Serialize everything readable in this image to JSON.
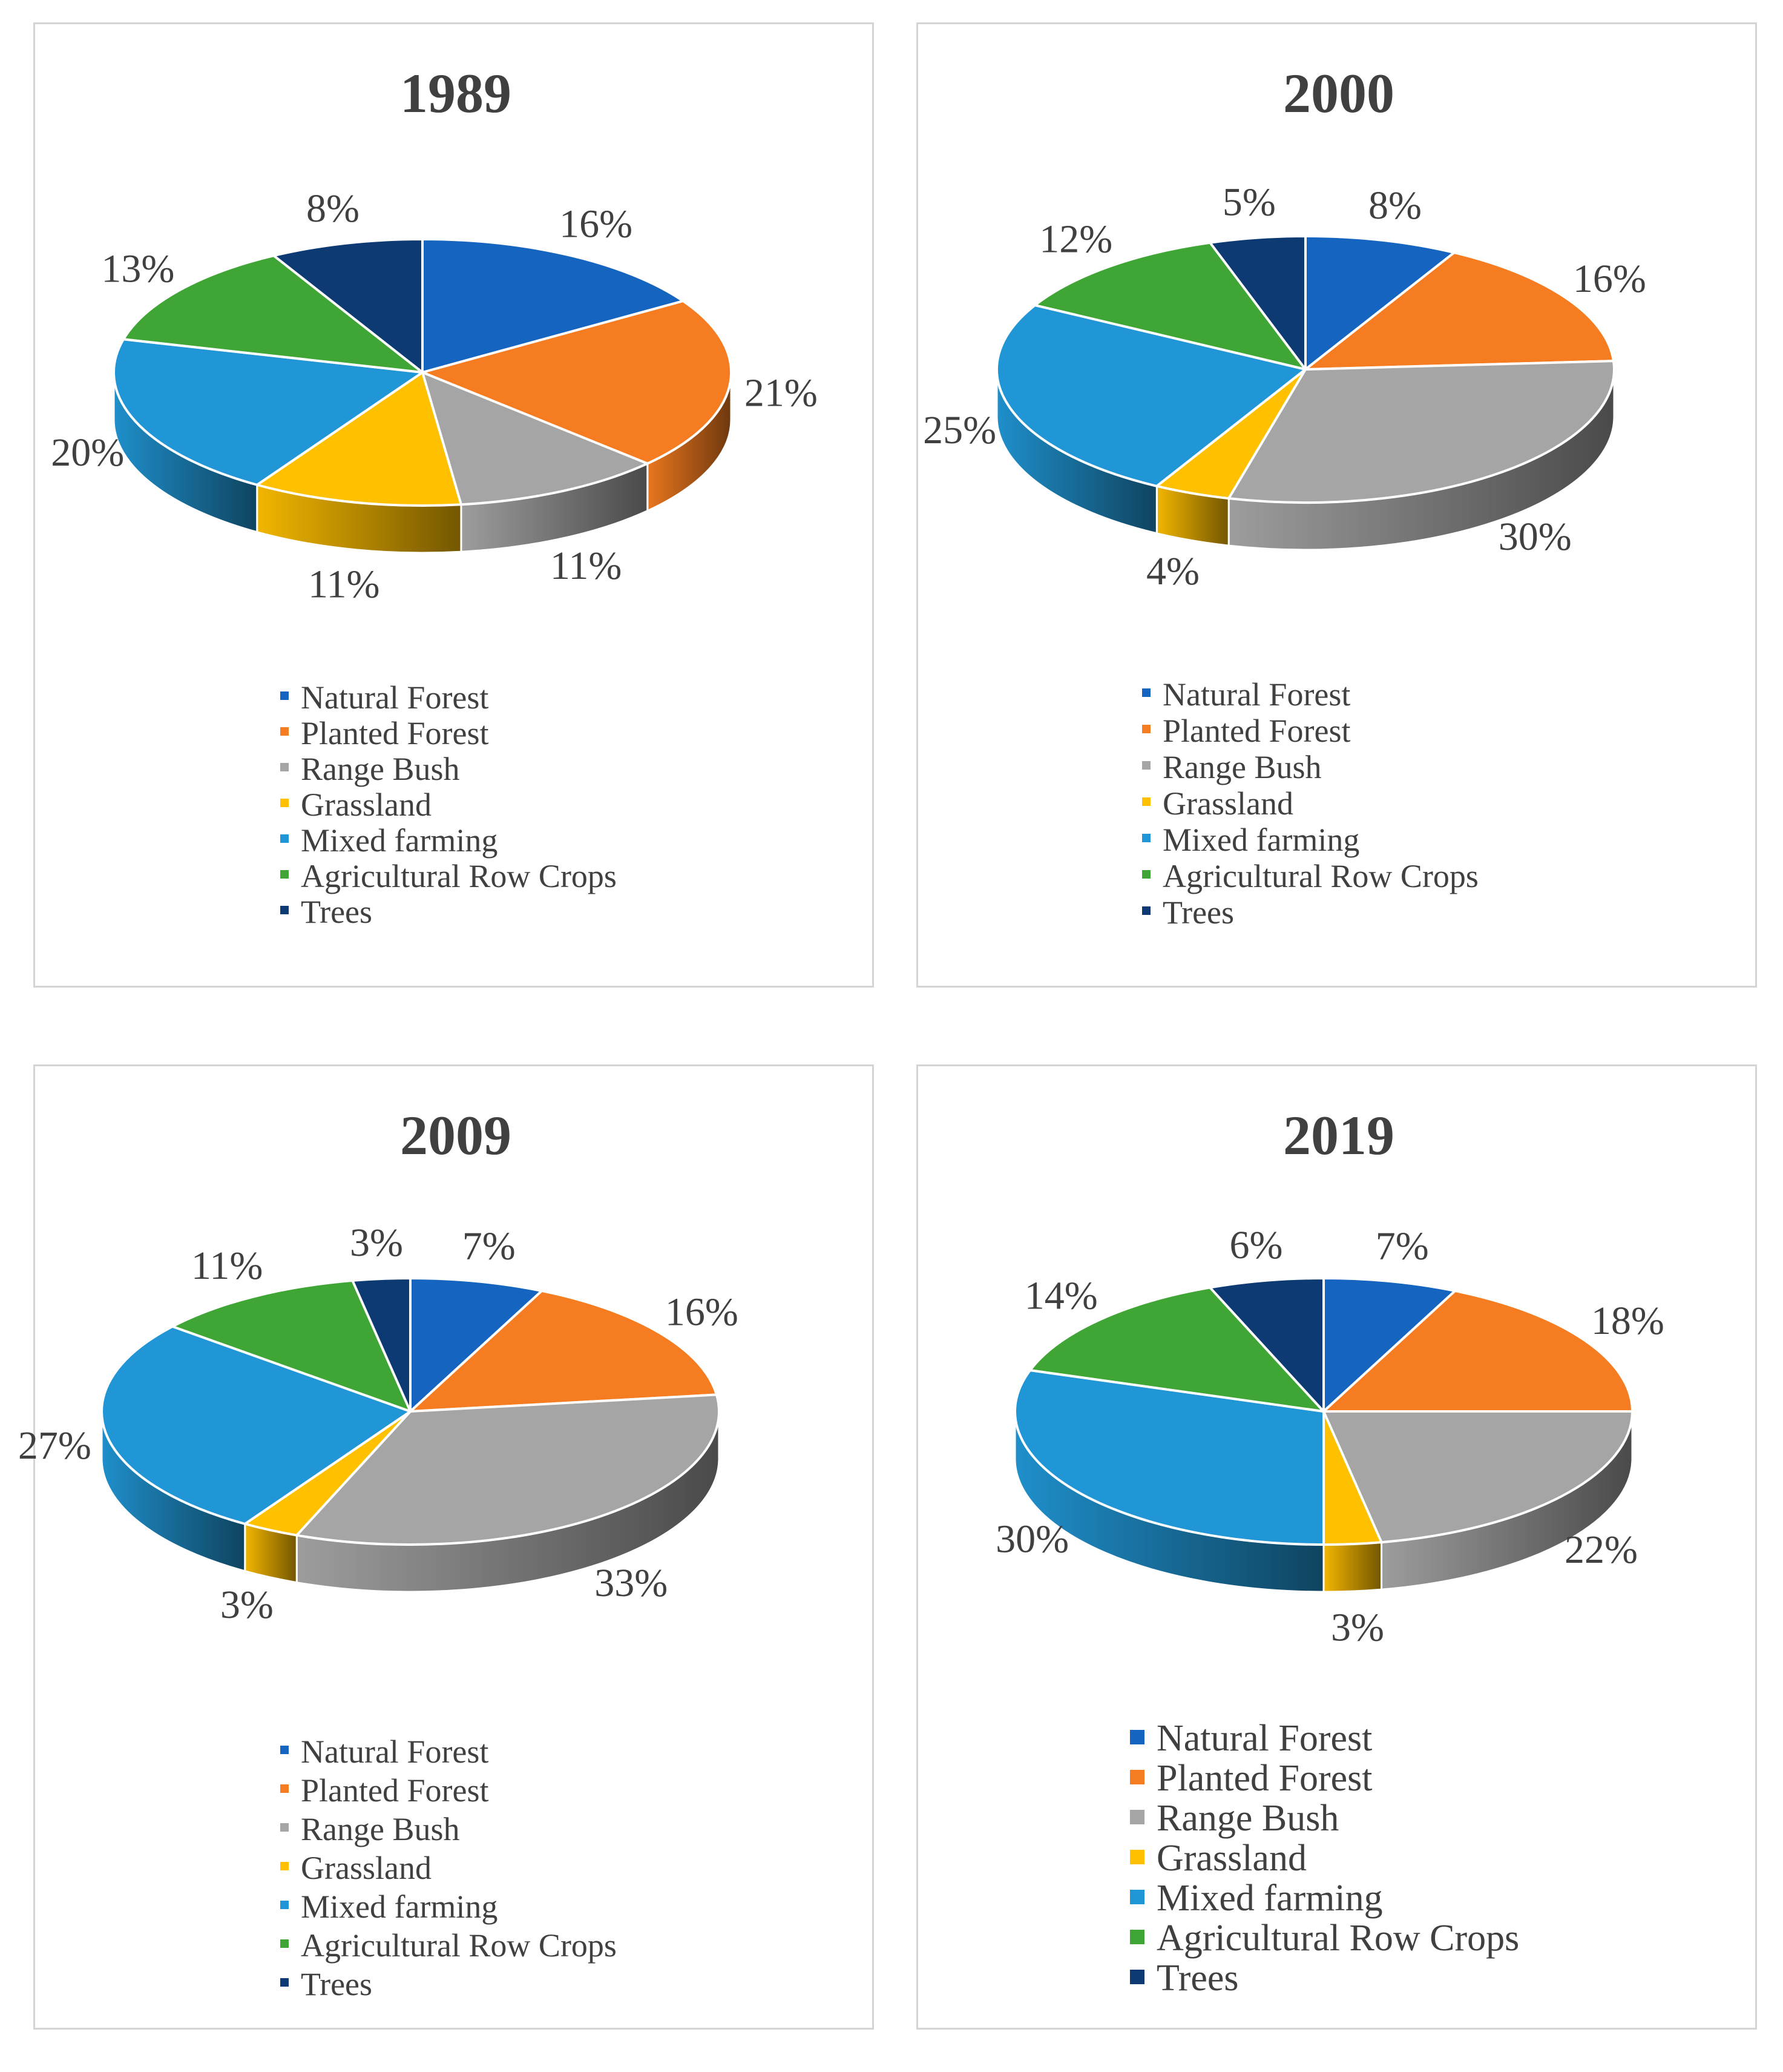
{
  "chart_data": [
    {
      "type": "pie",
      "title": "1989",
      "categories": [
        "Natural Forest",
        "Planted Forest",
        "Range Bush",
        "Grassland",
        "Mixed farming",
        "Agricultural Row Crops",
        "Trees"
      ],
      "values": [
        16,
        21,
        11,
        11,
        20,
        13,
        8
      ],
      "labels": [
        "16%",
        "21%",
        "11%",
        "11%",
        "20%",
        "13%",
        "8%"
      ],
      "legend_position": "bottom"
    },
    {
      "type": "pie",
      "title": "2000",
      "categories": [
        "Natural Forest",
        "Planted Forest",
        "Range Bush",
        "Grassland",
        "Mixed farming",
        "Agricultural Row Crops",
        "Trees"
      ],
      "values": [
        8,
        16,
        30,
        4,
        25,
        12,
        5
      ],
      "labels": [
        "8%",
        "16%",
        "30%",
        "4%",
        "25%",
        "12%",
        "5%"
      ],
      "legend_position": "bottom"
    },
    {
      "type": "pie",
      "title": "2009",
      "categories": [
        "Natural Forest",
        "Planted Forest",
        "Range Bush",
        "Grassland",
        "Mixed farming",
        "Agricultural Row Crops",
        "Trees"
      ],
      "values": [
        7,
        16,
        33,
        3,
        27,
        11,
        3
      ],
      "labels": [
        "7%",
        "16%",
        "33%",
        "3%",
        "27%",
        "11%",
        "3%"
      ],
      "legend_position": "bottom"
    },
    {
      "type": "pie",
      "title": "2019",
      "categories": [
        "Natural Forest",
        "Planted Forest",
        "Range Bush",
        "Grassland",
        "Mixed farming",
        "Agricultural Row Crops",
        "Trees"
      ],
      "values": [
        7,
        18,
        22,
        3,
        30,
        14,
        6
      ],
      "labels": [
        "7%",
        "18%",
        "22%",
        "3%",
        "30%",
        "14%",
        "6%"
      ],
      "legend_position": "bottom"
    }
  ],
  "colors": {
    "Natural Forest": "#1565c0",
    "Planted Forest": "#f57c20",
    "Range Bush": "#a5a5a5",
    "Grassland": "#ffc000",
    "Mixed farming": "#2196d6",
    "Agricultural Row Crops": "#3fa535",
    "Trees": "#0d3a73"
  }
}
